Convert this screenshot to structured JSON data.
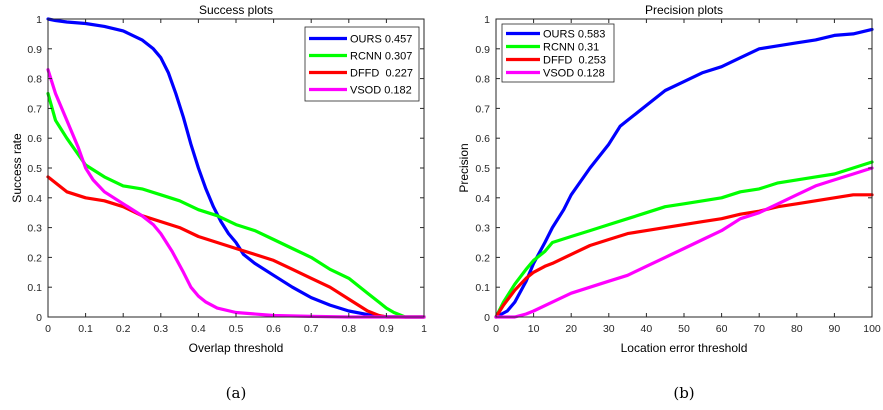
{
  "chart_data": [
    {
      "type": "line",
      "title": "Success plots",
      "xlabel": "Overlap threshold",
      "ylabel": "Success rate",
      "xlim": [
        0,
        1
      ],
      "ylim": [
        0,
        1
      ],
      "xticks": [
        0,
        0.1,
        0.2,
        0.3,
        0.4,
        0.5,
        0.6,
        0.7,
        0.8,
        0.9,
        1
      ],
      "yticks": [
        0,
        0.1,
        0.2,
        0.3,
        0.4,
        0.5,
        0.6,
        0.7,
        0.8,
        0.9,
        1
      ],
      "xtick_labels": [
        "0",
        "0.1",
        "0.2",
        "0.3",
        "0.4",
        "0.5",
        "0.6",
        "0.7",
        "0.8",
        "0.9",
        "1"
      ],
      "ytick_labels": [
        "0",
        "0.1",
        "0.2",
        "0.3",
        "0.4",
        "0.5",
        "0.6",
        "0.7",
        "0.8",
        "0.9",
        "1"
      ],
      "grid": false,
      "legend_position": "top-right",
      "caption": "(a)",
      "series": [
        {
          "name": "OURS 0.457",
          "color": "#0000ff",
          "x": [
            0,
            0.02,
            0.05,
            0.1,
            0.15,
            0.2,
            0.25,
            0.28,
            0.3,
            0.32,
            0.34,
            0.36,
            0.38,
            0.4,
            0.42,
            0.44,
            0.46,
            0.48,
            0.5,
            0.52,
            0.55,
            0.6,
            0.65,
            0.7,
            0.75,
            0.8,
            0.85,
            0.88,
            0.9,
            0.95,
            1
          ],
          "y": [
            1.0,
            0.995,
            0.99,
            0.985,
            0.975,
            0.96,
            0.93,
            0.9,
            0.87,
            0.82,
            0.75,
            0.67,
            0.58,
            0.5,
            0.43,
            0.37,
            0.32,
            0.28,
            0.25,
            0.21,
            0.18,
            0.14,
            0.1,
            0.065,
            0.04,
            0.02,
            0.008,
            0.003,
            0.001,
            0,
            0
          ]
        },
        {
          "name": "RCNN 0.307",
          "color": "#00ff00",
          "x": [
            0,
            0.02,
            0.05,
            0.1,
            0.15,
            0.2,
            0.25,
            0.3,
            0.35,
            0.4,
            0.45,
            0.5,
            0.55,
            0.6,
            0.65,
            0.7,
            0.75,
            0.8,
            0.85,
            0.88,
            0.9,
            0.92,
            0.95,
            1
          ],
          "y": [
            0.75,
            0.66,
            0.6,
            0.51,
            0.47,
            0.44,
            0.43,
            0.41,
            0.39,
            0.36,
            0.34,
            0.31,
            0.29,
            0.26,
            0.23,
            0.2,
            0.16,
            0.13,
            0.08,
            0.05,
            0.03,
            0.015,
            0,
            0
          ]
        },
        {
          "name": "DFFD  0.227",
          "color": "#ff0000",
          "x": [
            0,
            0.05,
            0.1,
            0.15,
            0.2,
            0.25,
            0.3,
            0.35,
            0.4,
            0.45,
            0.5,
            0.55,
            0.6,
            0.65,
            0.7,
            0.75,
            0.8,
            0.85,
            0.88,
            0.9,
            0.92,
            0.95,
            1
          ],
          "y": [
            0.47,
            0.42,
            0.4,
            0.39,
            0.37,
            0.34,
            0.32,
            0.3,
            0.27,
            0.25,
            0.23,
            0.21,
            0.19,
            0.16,
            0.13,
            0.1,
            0.06,
            0.02,
            0.005,
            0,
            0,
            0,
            0
          ]
        },
        {
          "name": "VSOD 0.182",
          "color": "#ff00ff",
          "x": [
            0,
            0.02,
            0.05,
            0.08,
            0.1,
            0.12,
            0.15,
            0.2,
            0.25,
            0.28,
            0.3,
            0.33,
            0.36,
            0.38,
            0.4,
            0.42,
            0.45,
            0.5,
            0.6,
            0.7,
            0.8,
            0.9,
            1
          ],
          "y": [
            0.83,
            0.75,
            0.66,
            0.57,
            0.5,
            0.46,
            0.42,
            0.38,
            0.34,
            0.31,
            0.28,
            0.22,
            0.15,
            0.1,
            0.07,
            0.05,
            0.03,
            0.015,
            0.005,
            0.002,
            0,
            0,
            0
          ]
        }
      ]
    },
    {
      "type": "line",
      "title": "Precision plots",
      "xlabel": "Location error threshold",
      "ylabel": "Precision",
      "xlim": [
        0,
        100
      ],
      "ylim": [
        0,
        1
      ],
      "xticks": [
        0,
        10,
        20,
        30,
        40,
        50,
        60,
        70,
        80,
        90,
        100
      ],
      "yticks": [
        0,
        0.1,
        0.2,
        0.3,
        0.4,
        0.5,
        0.6,
        0.7,
        0.8,
        0.9,
        1
      ],
      "xtick_labels": [
        "0",
        "10",
        "20",
        "30",
        "40",
        "50",
        "60",
        "70",
        "80",
        "90",
        "100"
      ],
      "ytick_labels": [
        "0",
        "0.1",
        "0.2",
        "0.3",
        "0.4",
        "0.5",
        "0.6",
        "0.7",
        "0.8",
        "0.9",
        "1"
      ],
      "grid": false,
      "legend_position": "top-left",
      "caption": "(b)",
      "series": [
        {
          "name": "OURS 0.583",
          "color": "#0000ff",
          "x": [
            0,
            3,
            5,
            8,
            10,
            13,
            15,
            18,
            20,
            25,
            30,
            33,
            35,
            40,
            45,
            50,
            55,
            60,
            65,
            70,
            75,
            80,
            85,
            90,
            95,
            100
          ],
          "y": [
            0,
            0.02,
            0.05,
            0.12,
            0.18,
            0.25,
            0.3,
            0.36,
            0.41,
            0.5,
            0.58,
            0.64,
            0.66,
            0.71,
            0.76,
            0.79,
            0.82,
            0.84,
            0.87,
            0.9,
            0.91,
            0.92,
            0.93,
            0.945,
            0.95,
            0.965
          ]
        },
        {
          "name": "RCNN 0.31",
          "color": "#00ff00",
          "x": [
            0,
            2,
            5,
            8,
            10,
            13,
            15,
            20,
            25,
            30,
            35,
            40,
            45,
            50,
            55,
            60,
            65,
            70,
            75,
            80,
            85,
            90,
            95,
            100
          ],
          "y": [
            0,
            0.05,
            0.11,
            0.16,
            0.19,
            0.22,
            0.25,
            0.27,
            0.29,
            0.31,
            0.33,
            0.35,
            0.37,
            0.38,
            0.39,
            0.4,
            0.42,
            0.43,
            0.45,
            0.46,
            0.47,
            0.48,
            0.5,
            0.52
          ]
        },
        {
          "name": "DFFD  0.253",
          "color": "#ff0000",
          "x": [
            0,
            2,
            5,
            8,
            10,
            13,
            15,
            20,
            25,
            30,
            35,
            40,
            45,
            50,
            55,
            60,
            65,
            70,
            75,
            80,
            85,
            90,
            95,
            100
          ],
          "y": [
            0,
            0.04,
            0.09,
            0.13,
            0.15,
            0.17,
            0.18,
            0.21,
            0.24,
            0.26,
            0.28,
            0.29,
            0.3,
            0.31,
            0.32,
            0.33,
            0.345,
            0.355,
            0.37,
            0.38,
            0.39,
            0.4,
            0.41,
            0.41
          ]
        },
        {
          "name": "VSOD 0.128",
          "color": "#ff00ff",
          "x": [
            0,
            5,
            8,
            10,
            15,
            20,
            25,
            30,
            35,
            40,
            45,
            50,
            55,
            60,
            65,
            70,
            75,
            80,
            85,
            90,
            95,
            100
          ],
          "y": [
            0,
            0,
            0.01,
            0.02,
            0.05,
            0.08,
            0.1,
            0.12,
            0.14,
            0.17,
            0.2,
            0.23,
            0.26,
            0.29,
            0.33,
            0.35,
            0.38,
            0.41,
            0.44,
            0.46,
            0.48,
            0.5
          ]
        }
      ]
    }
  ]
}
